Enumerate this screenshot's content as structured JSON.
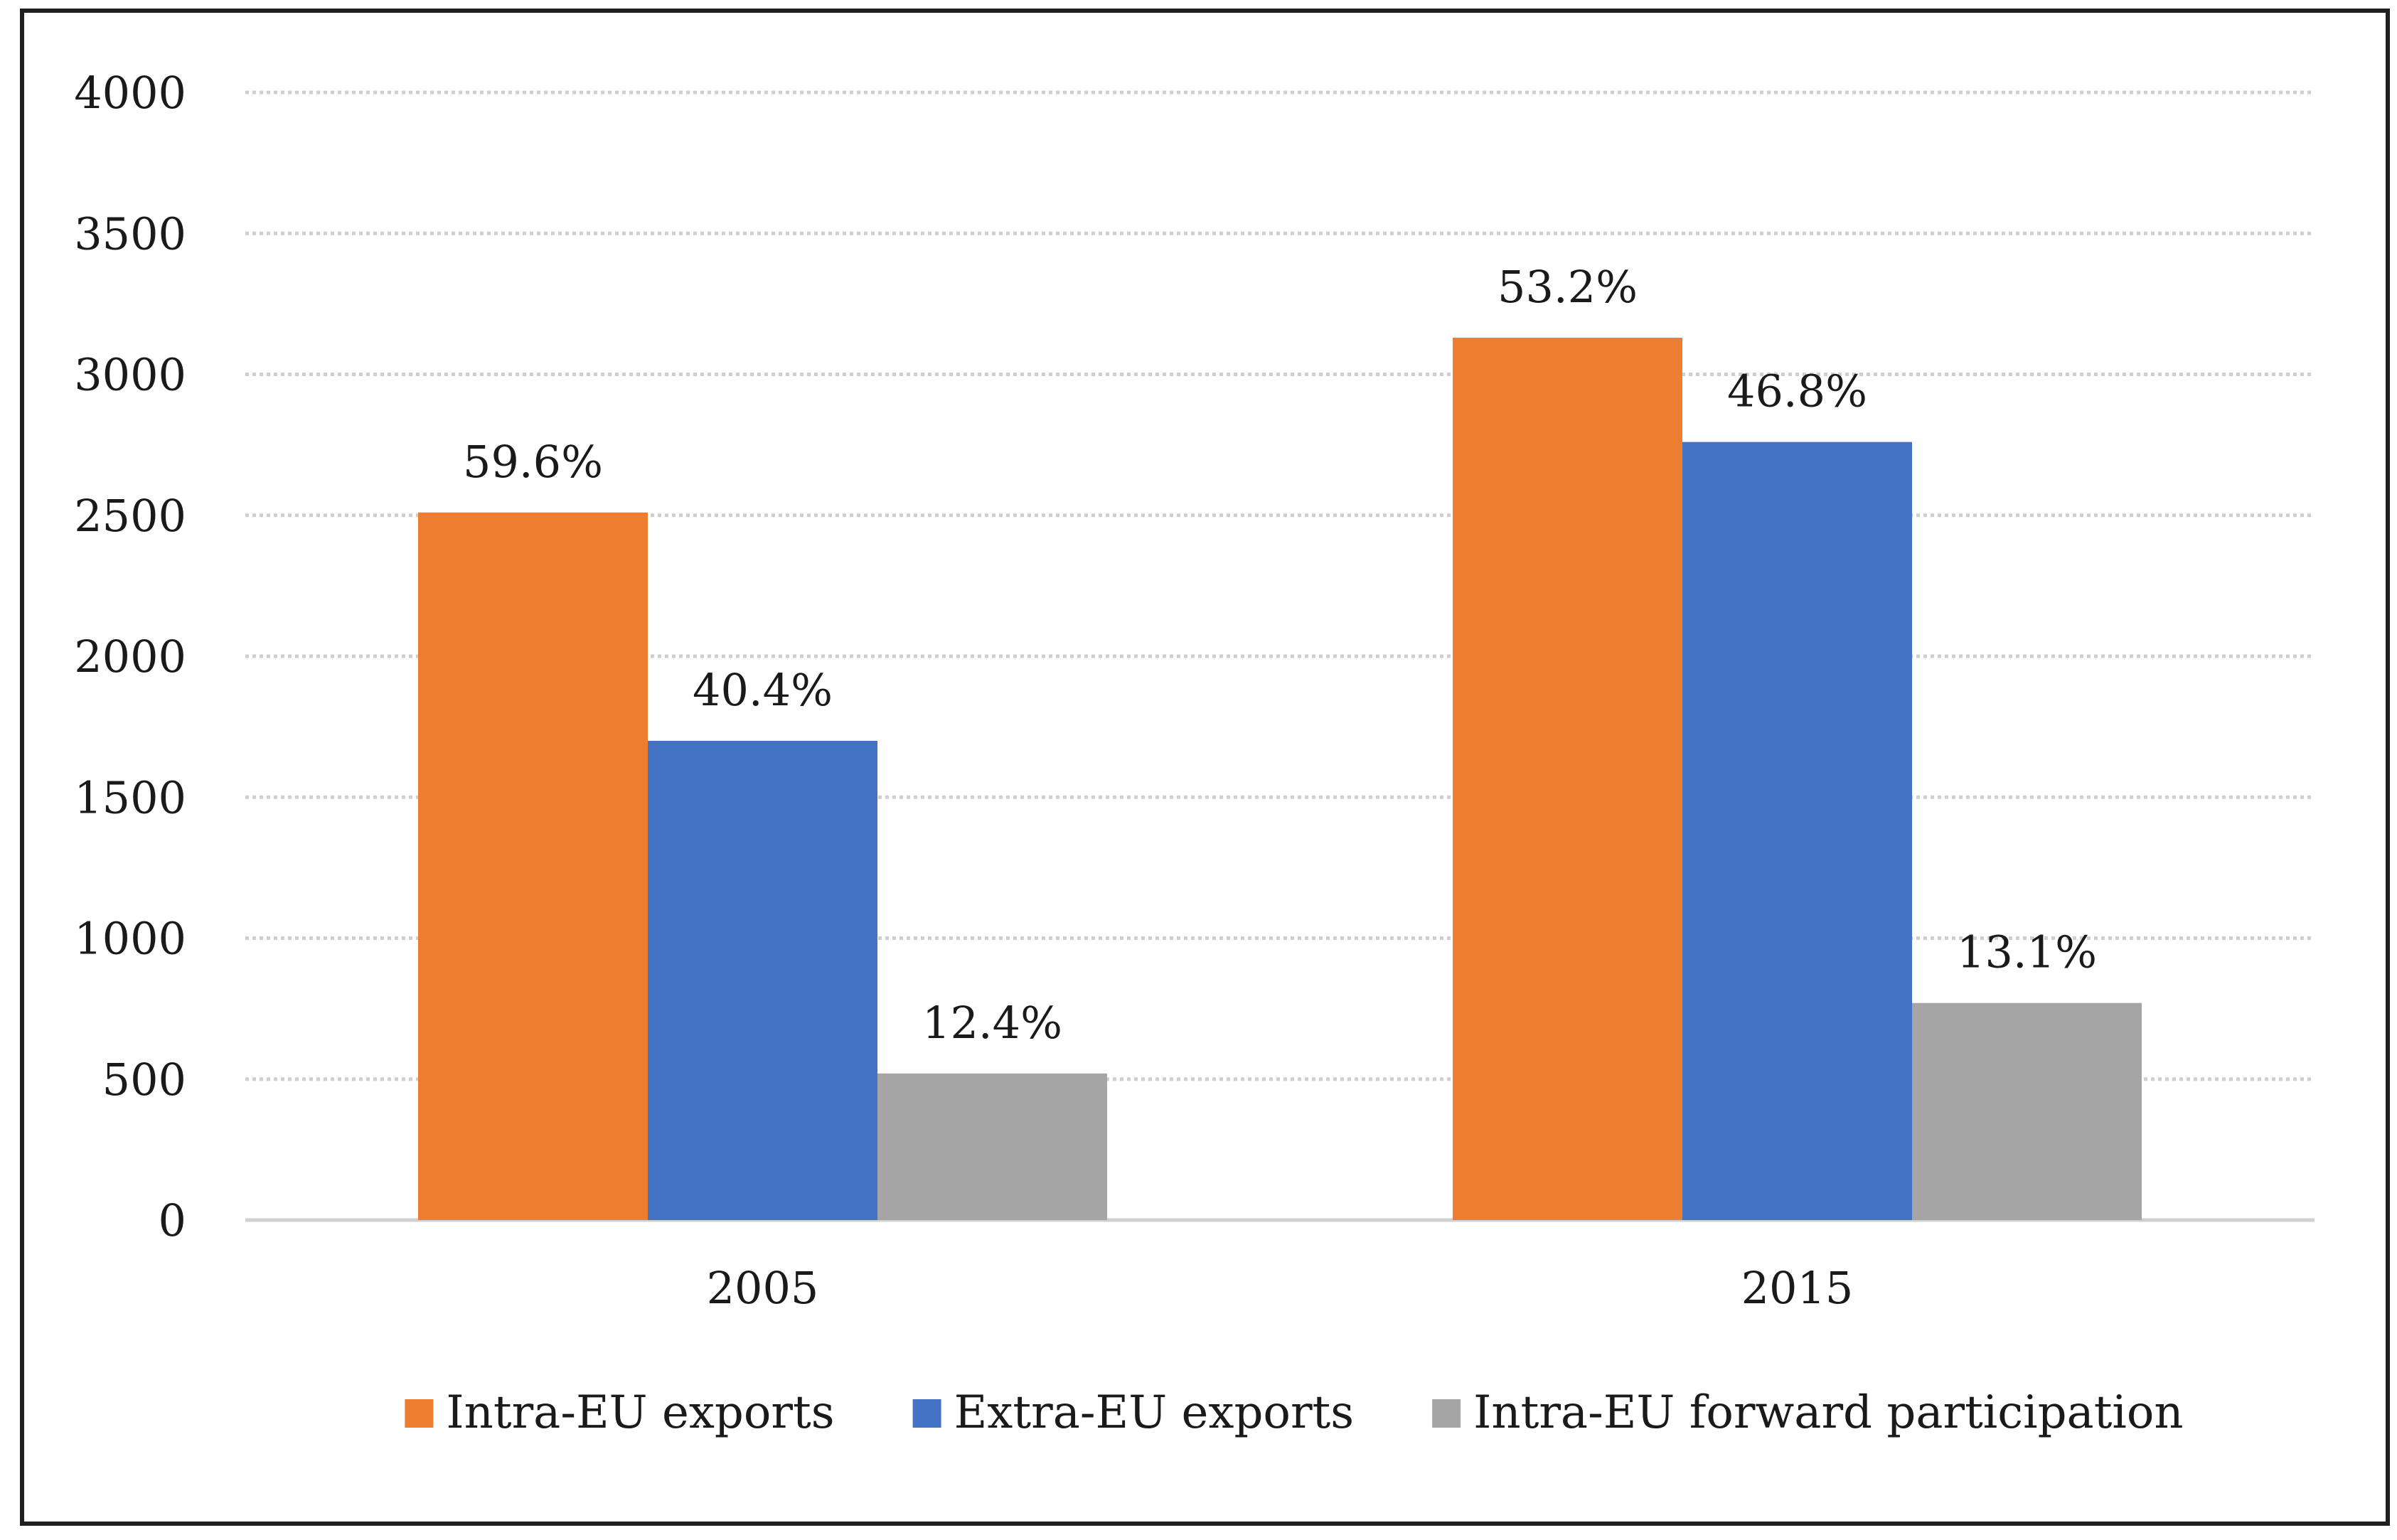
{
  "chart_data": {
    "type": "bar",
    "title": "",
    "xlabel": "",
    "ylabel": "",
    "categories": [
      "2005",
      "2015"
    ],
    "ylim": [
      0,
      4000
    ],
    "yticks": [
      0,
      500,
      1000,
      1500,
      2000,
      2500,
      3000,
      3500,
      4000
    ],
    "grid": true,
    "legend_position": "bottom",
    "series": [
      {
        "name": "Intra-EU exports",
        "color": "#ED7D31",
        "values": [
          2510,
          3130
        ],
        "labels": [
          "59.6%",
          "53.2%"
        ]
      },
      {
        "name": "Extra-EU exports",
        "color": "#4472C4",
        "values": [
          1700,
          2760
        ],
        "labels": [
          "40.4%",
          "46.8%"
        ]
      },
      {
        "name": "Intra-EU forward participation",
        "color": "#A5A5A5",
        "values": [
          520,
          770
        ],
        "labels": [
          "12.4%",
          "13.1%"
        ]
      }
    ]
  }
}
